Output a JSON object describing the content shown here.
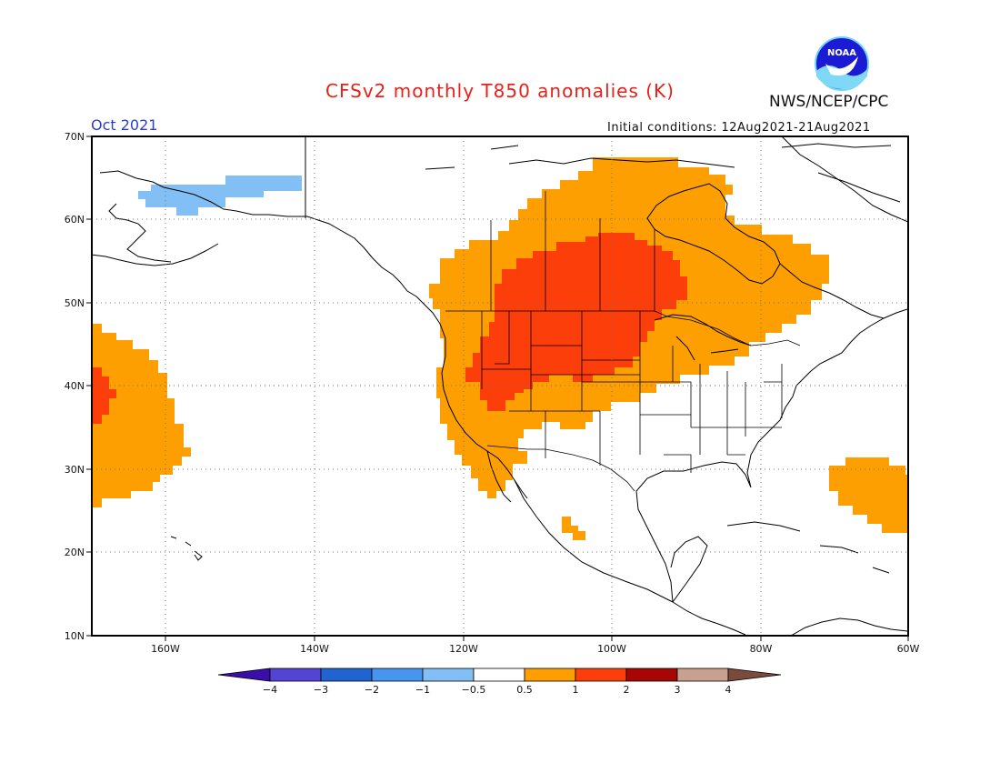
{
  "title": "CFSv2 monthly T850 anomalies (K)",
  "agency": "NWS/NCEP/CPC",
  "logo_text": "NOAA",
  "month": "Oct 2021",
  "initial_conditions": "Initial conditions: 12Aug2021-21Aug2021",
  "lat_labels": [
    "70N",
    "60N",
    "50N",
    "40N",
    "30N",
    "20N",
    "10N"
  ],
  "lon_labels": [
    "160W",
    "140W",
    "120W",
    "100W",
    "80W",
    "60W"
  ],
  "colorbar": {
    "labels": [
      "-4",
      "-3",
      "-2",
      "-1",
      "-0.5",
      "0.5",
      "1",
      "2",
      "3",
      "4"
    ],
    "colors": [
      "#3a0ea8",
      "#5444d4",
      "#1f64d0",
      "#4796ee",
      "#82bff4",
      "#ffffff",
      "#fd9f00",
      "#fb3e0a",
      "#a80505",
      "#c7a08f",
      "#7a4a3a"
    ]
  },
  "colors": {
    "warm": "#fd9f00",
    "hot": "#fb3e0a",
    "cool": "#82bff4"
  }
}
